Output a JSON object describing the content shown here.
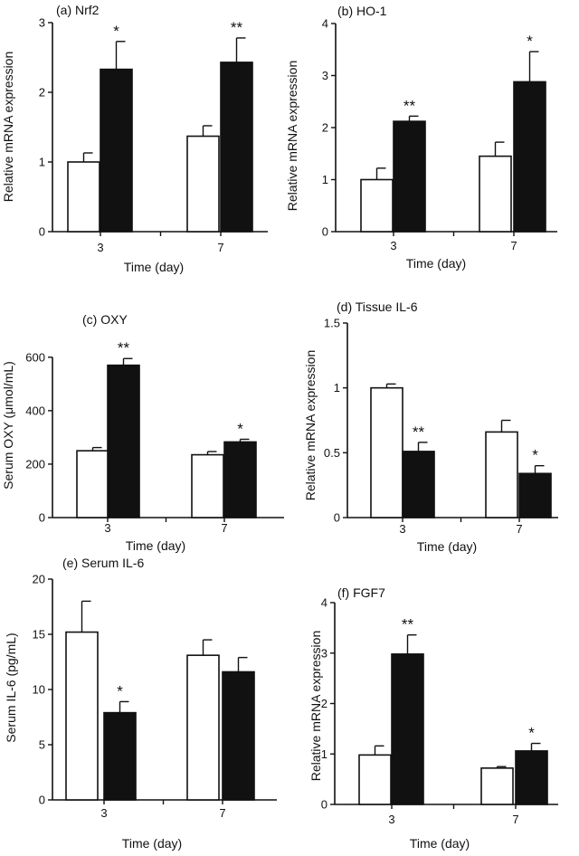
{
  "chart_data": [
    {
      "type": "bar",
      "title": "(a) Nrf2",
      "xlabel": "Time (day)",
      "ylabel": "Relative mRNA expression",
      "categories": [
        "3",
        "7"
      ],
      "ylim": [
        0,
        3
      ],
      "yticks": [
        "0",
        "1",
        "2",
        "3"
      ],
      "series": [
        {
          "values": [
            1.0,
            1.37
          ],
          "errors": [
            0.13,
            0.15
          ],
          "fill": "#ffffff"
        },
        {
          "values": [
            2.33,
            2.43
          ],
          "errors": [
            0.4,
            0.35
          ],
          "fill": "#111111"
        }
      ],
      "significance": [
        "*",
        "**"
      ]
    },
    {
      "type": "bar",
      "title": "(b) HO-1",
      "xlabel": "Time (day)",
      "ylabel": "Relative mRNA expression",
      "categories": [
        "3",
        "7"
      ],
      "ylim": [
        0,
        4
      ],
      "yticks": [
        "0",
        "1",
        "2",
        "3",
        "4"
      ],
      "series": [
        {
          "values": [
            1.0,
            1.45
          ],
          "errors": [
            0.22,
            0.27
          ],
          "fill": "#ffffff"
        },
        {
          "values": [
            2.12,
            2.88
          ],
          "errors": [
            0.1,
            0.58
          ],
          "fill": "#111111"
        }
      ],
      "significance": [
        "**",
        "*"
      ]
    },
    {
      "type": "bar",
      "title": "(c) OXY",
      "xlabel": "Time (day)",
      "ylabel": "Serum  OXY  (μmol/mL)",
      "categories": [
        "3",
        "7"
      ],
      "ylim": [
        0,
        650
      ],
      "yticks": [
        "0",
        "200",
        "400",
        "600"
      ],
      "series": [
        {
          "values": [
            250,
            235
          ],
          "errors": [
            12,
            12
          ],
          "fill": "#ffffff"
        },
        {
          "values": [
            570,
            283
          ],
          "errors": [
            25,
            10
          ],
          "fill": "#111111"
        }
      ],
      "significance": [
        "**",
        "*"
      ]
    },
    {
      "type": "bar",
      "title": "(d)  Tissue  IL-6",
      "xlabel": "Time (day)",
      "ylabel": "Relative mRNA expression",
      "categories": [
        "3",
        "7"
      ],
      "ylim": [
        0,
        1.5
      ],
      "yticks": [
        "0",
        "0.5",
        "1",
        "1.5"
      ],
      "series": [
        {
          "values": [
            1.0,
            0.66
          ],
          "errors": [
            0.03,
            0.09
          ],
          "fill": "#ffffff"
        },
        {
          "values": [
            0.51,
            0.34
          ],
          "errors": [
            0.07,
            0.06
          ],
          "fill": "#111111"
        }
      ],
      "significance": [
        "**",
        "*"
      ]
    },
    {
      "type": "bar",
      "title": "(e) Serum IL-6",
      "xlabel": "Time (day)",
      "ylabel": "Serum IL-6 (pg/mL)",
      "categories": [
        "3",
        "7"
      ],
      "ylim": [
        0,
        20
      ],
      "yticks": [
        "0",
        "5",
        "10",
        "15",
        "20"
      ],
      "series": [
        {
          "values": [
            15.2,
            13.1
          ],
          "errors": [
            2.8,
            1.4
          ],
          "fill": "#ffffff"
        },
        {
          "values": [
            7.9,
            11.6
          ],
          "errors": [
            1.0,
            1.3
          ],
          "fill": "#111111"
        }
      ],
      "significance": [
        "*",
        ""
      ]
    },
    {
      "type": "bar",
      "title": "(f) FGF7",
      "xlabel": "Time (day)",
      "ylabel": "Relative mRNA expression",
      "categories": [
        "3",
        "7"
      ],
      "ylim": [
        0,
        4
      ],
      "yticks": [
        "0",
        "1",
        "2",
        "3",
        "4"
      ],
      "series": [
        {
          "values": [
            0.98,
            0.72
          ],
          "errors": [
            0.18,
            0.03
          ],
          "fill": "#ffffff"
        },
        {
          "values": [
            2.98,
            1.06
          ],
          "errors": [
            0.38,
            0.15
          ],
          "fill": "#111111"
        }
      ],
      "significance": [
        "**",
        "*"
      ]
    }
  ]
}
